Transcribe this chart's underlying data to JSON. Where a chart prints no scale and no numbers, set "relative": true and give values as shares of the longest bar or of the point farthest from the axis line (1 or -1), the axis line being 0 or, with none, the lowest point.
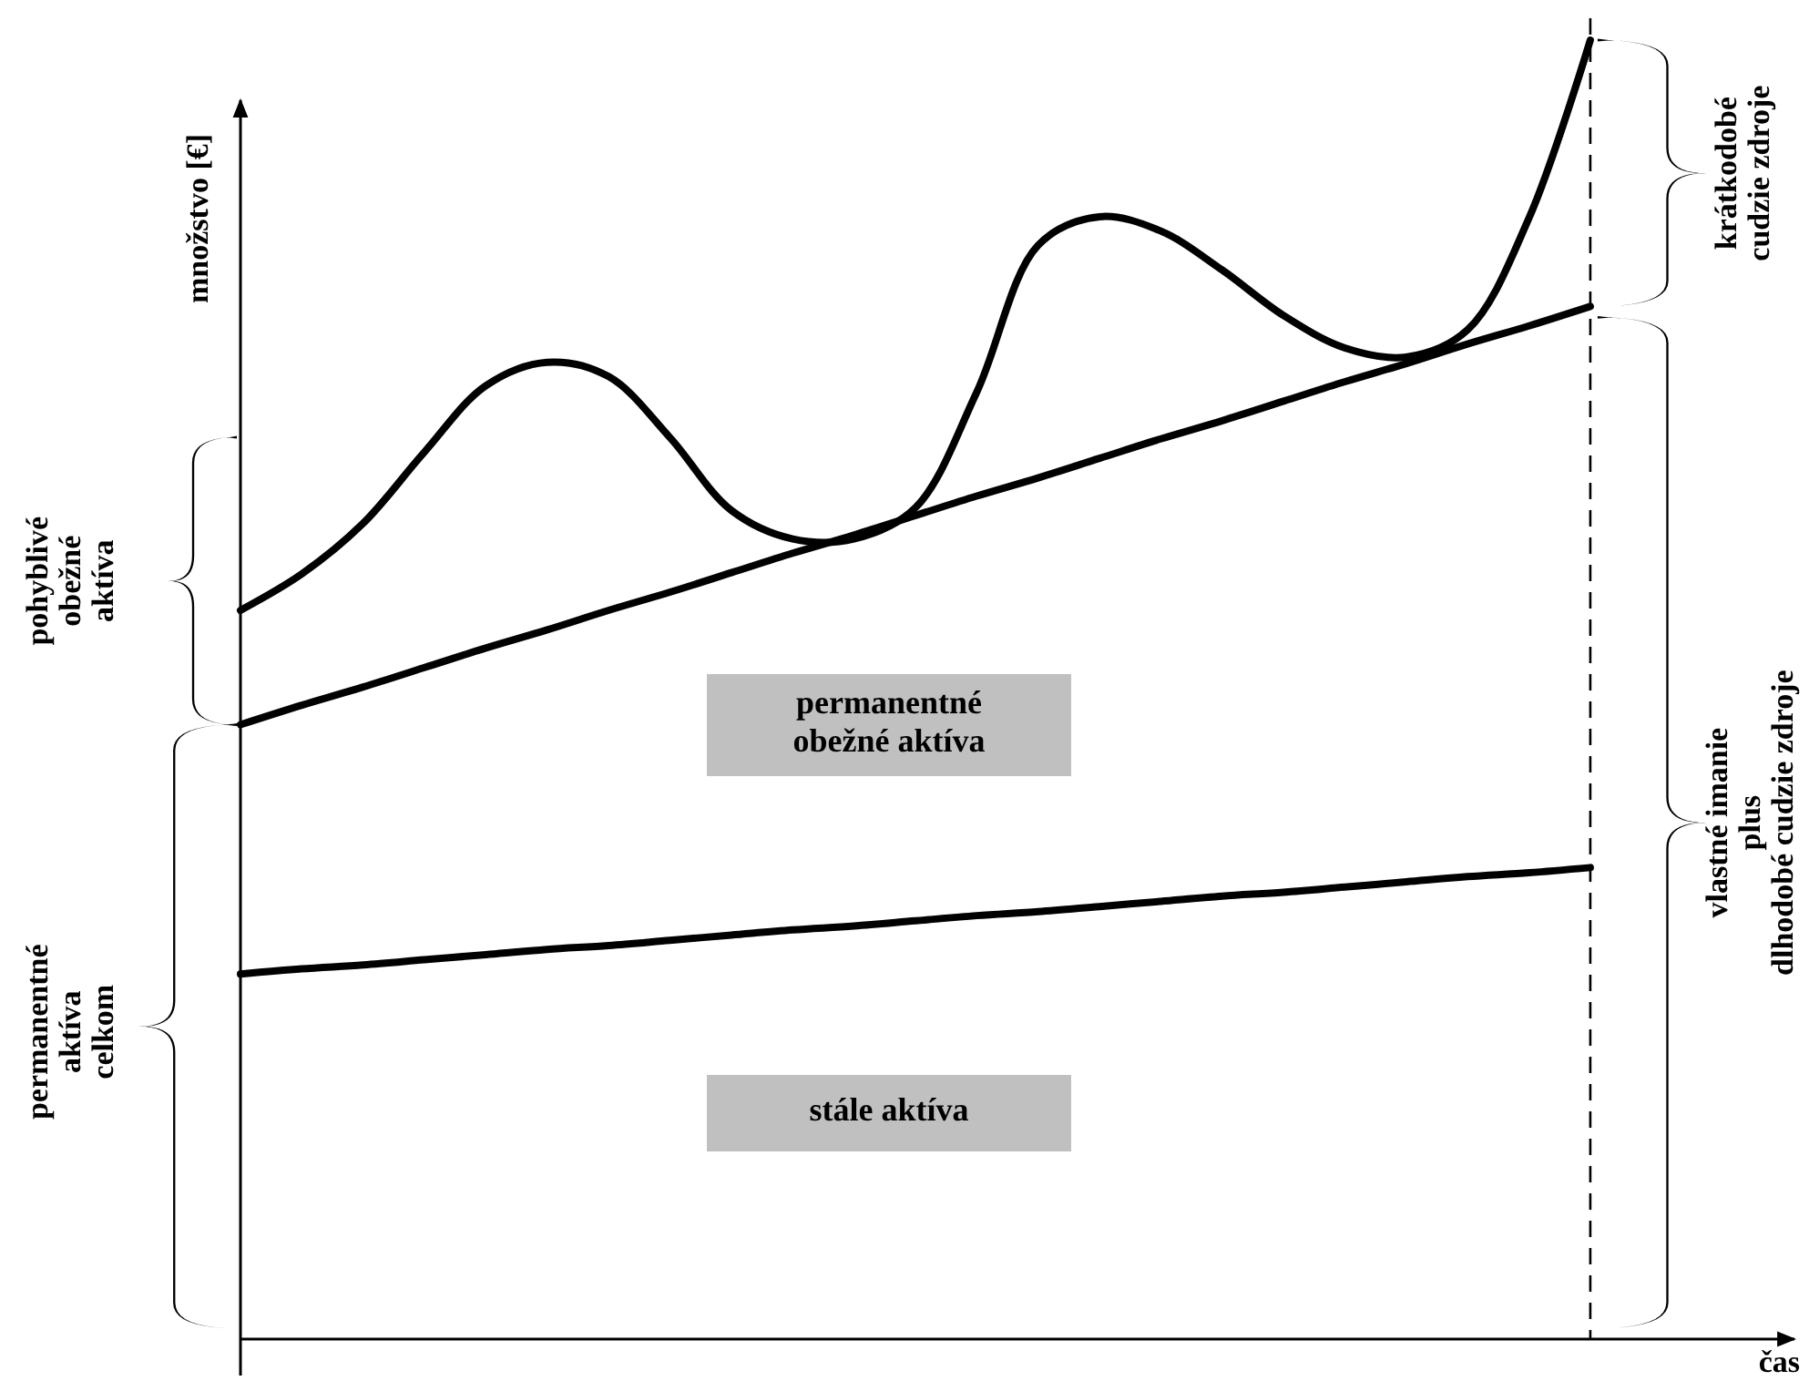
{
  "chart_data": {
    "type": "line",
    "relative": true,
    "xlabel": "čas",
    "ylabel": "množstvo [€]",
    "categories": [
      null,
      null,
      null,
      null,
      null,
      null,
      null,
      null,
      null,
      null,
      null,
      null,
      null,
      null,
      null,
      null,
      null,
      null,
      null,
      null,
      null,
      null,
      null,
      null,
      null,
      null
    ],
    "series": [
      {
        "color": "#000000",
        "values": [
          0.561,
          0.589,
          0.628,
          0.683,
          0.734,
          0.752,
          0.741,
          0.694,
          0.638,
          0.616,
          0.616,
          0.64,
          0.729,
          0.842,
          0.864,
          0.853,
          0.823,
          0.788,
          0.763,
          0.756,
          0.777,
          0.863,
          1,
          null,
          null,
          null
        ]
      },
      {
        "color": "#000000",
        "values": [
          0.473,
          0.488,
          0.502,
          0.517,
          0.532,
          0.546,
          0.561,
          0.575,
          0.59,
          0.605,
          0.619,
          0.634,
          0.649,
          0.663,
          0.678,
          0.693,
          0.707,
          0.722,
          0.737,
          0.751,
          0.766,
          0.78,
          0.795,
          null,
          null,
          null
        ]
      },
      {
        "color": "#000000",
        "values": [
          0.281,
          0.285,
          0.288,
          0.292,
          0.296,
          0.3,
          0.303,
          0.307,
          0.311,
          0.315,
          0.318,
          0.322,
          0.326,
          0.329,
          0.333,
          0.337,
          0.341,
          0.344,
          0.348,
          0.352,
          0.356,
          0.359,
          0.363,
          null,
          null,
          null
        ]
      }
    ],
    "annotations": [
      "pohyblivé\nobežné\naktíva",
      "permanentné\naktíva\ncelkom",
      "krátkodobé\ncudzie zdroje",
      "vlastné imanie\nplus\ndlhodobé cudzie zdroje",
      "permanentné\nobežné aktíva",
      "stále aktíva"
    ]
  }
}
